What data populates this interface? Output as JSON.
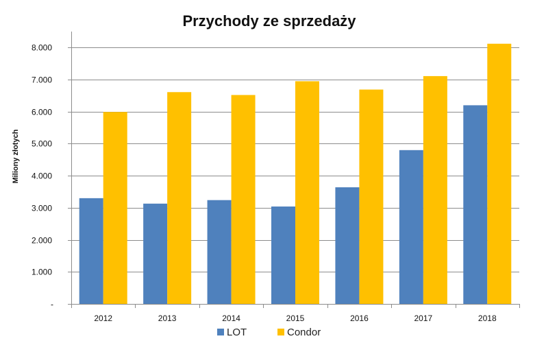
{
  "chart_data": {
    "type": "bar",
    "title": "Przychody ze sprzedaży",
    "ylabel": "Miliony złotych",
    "xlabel": "",
    "categories": [
      "2012",
      "2013",
      "2014",
      "2015",
      "2016",
      "2017",
      "2018"
    ],
    "series": [
      {
        "name": "LOT",
        "color": "#4F81BD",
        "values": [
          3300,
          3130,
          3240,
          3040,
          3640,
          4800,
          6200
        ]
      },
      {
        "name": "Condor",
        "color": "#FFC000",
        "values": [
          5990,
          6610,
          6520,
          6950,
          6690,
          7110,
          8120
        ]
      }
    ],
    "ylim": [
      0,
      8000
    ],
    "yticks": [
      {
        "value": 0,
        "label": "-"
      },
      {
        "value": 1000,
        "label": "1.000"
      },
      {
        "value": 2000,
        "label": "2.000"
      },
      {
        "value": 3000,
        "label": "3.000"
      },
      {
        "value": 4000,
        "label": "4.000"
      },
      {
        "value": 5000,
        "label": "5.000"
      },
      {
        "value": 6000,
        "label": "6.000"
      },
      {
        "value": 7000,
        "label": "7.000"
      },
      {
        "value": 8000,
        "label": "8.000"
      }
    ],
    "grid": true,
    "legend": "bottom"
  }
}
